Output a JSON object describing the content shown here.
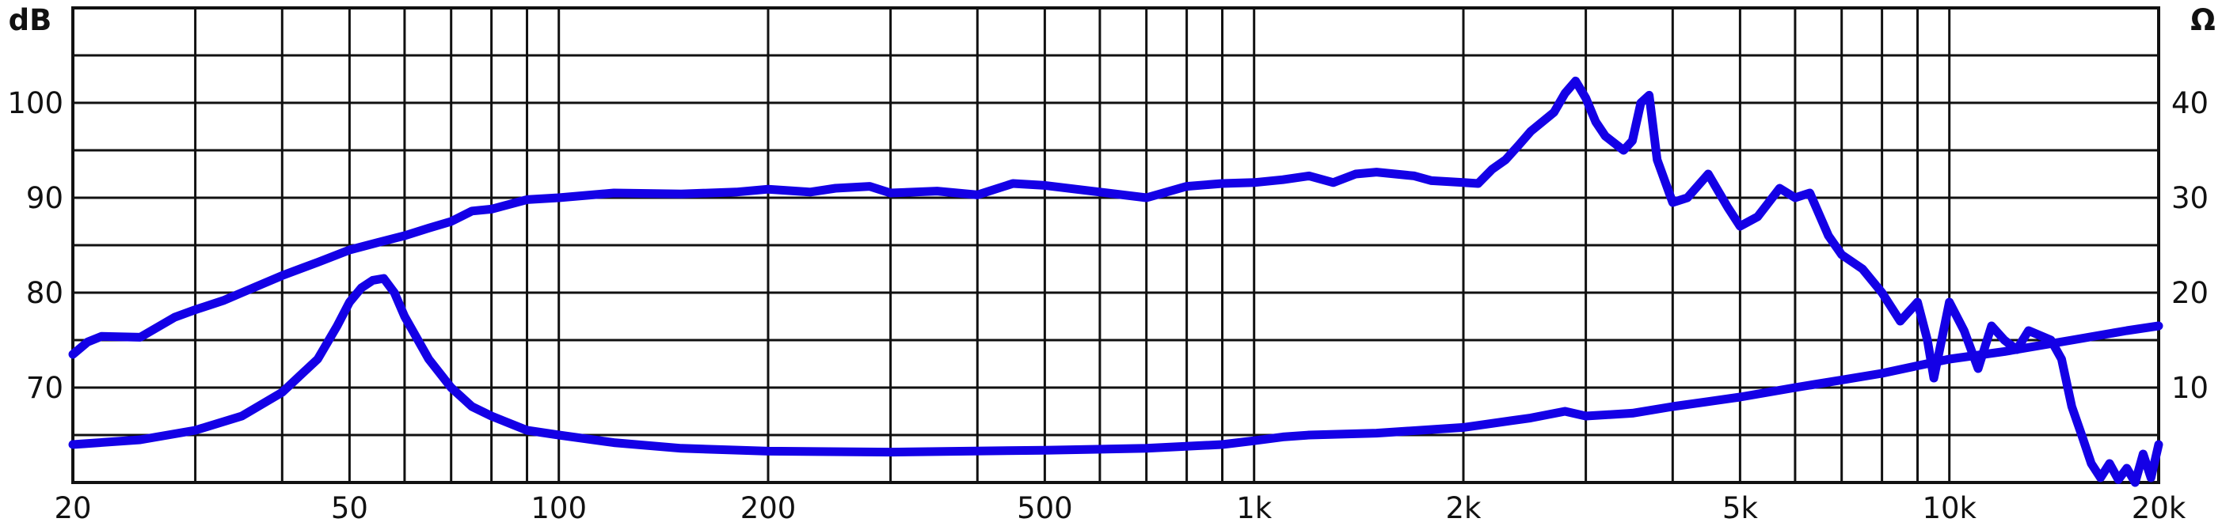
{
  "chart_data": {
    "type": "line",
    "title": "",
    "xlabel": "",
    "x_scale": "log",
    "xlim": [
      20,
      20000
    ],
    "x_major_ticks": [
      20,
      50,
      100,
      200,
      500,
      1000,
      2000,
      5000,
      10000,
      20000
    ],
    "x_tick_labels": [
      "20",
      "50",
      "100",
      "200",
      "500",
      "1k",
      "2k",
      "5k",
      "10k",
      "20k"
    ],
    "x_minor_gridlines": [
      30,
      40,
      60,
      70,
      80,
      90,
      300,
      400,
      600,
      700,
      800,
      900,
      3000,
      4000,
      6000,
      7000,
      8000,
      9000
    ],
    "y_left": {
      "unit": "dB",
      "ylim": [
        60,
        110
      ],
      "tick_values": [
        70,
        80,
        90,
        100
      ],
      "tick_labels": [
        "70",
        "80",
        "90",
        "100"
      ]
    },
    "y_right": {
      "unit": "Ω",
      "ylim": [
        0,
        50
      ],
      "tick_values": [
        10,
        20,
        30,
        40
      ],
      "tick_labels": [
        "10",
        "20",
        "30",
        "40"
      ]
    },
    "gridline_step_left_db": 5,
    "grid": true,
    "line_color": "#1400e6",
    "series": [
      {
        "axis": "left",
        "x": [
          20,
          21,
          22,
          25,
          28,
          30,
          33,
          35,
          40,
          45,
          50,
          55,
          60,
          65,
          70,
          75,
          80,
          90,
          100,
          120,
          150,
          180,
          200,
          230,
          250,
          280,
          300,
          350,
          400,
          450,
          500,
          600,
          700,
          800,
          900,
          1000,
          1100,
          1200,
          1300,
          1400,
          1500,
          1700,
          1800,
          2000,
          2100,
          2200,
          2300,
          2400,
          2500,
          2700,
          2800,
          2900,
          3000,
          3100,
          3200,
          3400,
          3500,
          3600,
          3700,
          3800,
          4000,
          4200,
          4500,
          4800,
          5000,
          5300,
          5700,
          6000,
          6300,
          6700,
          7000,
          7500,
          8000,
          8500,
          9000,
          9300,
          9500,
          10000,
          10500,
          11000,
          11500,
          12000,
          12500,
          13000,
          14000,
          14500,
          15000,
          15500,
          16000,
          16500,
          17000,
          17500,
          18000,
          18500,
          19000,
          19500,
          20000
        ],
        "values": [
          73.5,
          74.8,
          75.4,
          75.3,
          77.4,
          78.2,
          79.2,
          80.0,
          81.8,
          83.2,
          84.5,
          85.3,
          86.0,
          86.8,
          87.5,
          88.6,
          88.8,
          89.8,
          90.0,
          90.5,
          90.4,
          90.6,
          90.9,
          90.6,
          91.0,
          91.2,
          90.5,
          90.7,
          90.3,
          91.5,
          91.3,
          90.6,
          90.0,
          91.2,
          91.5,
          91.6,
          91.9,
          92.3,
          91.6,
          92.5,
          92.7,
          92.3,
          91.8,
          91.6,
          91.5,
          93.0,
          94.0,
          95.5,
          97.0,
          99.0,
          101.0,
          102.3,
          100.5,
          98.0,
          96.5,
          95.0,
          96.0,
          100.0,
          100.8,
          94.0,
          89.5,
          90.0,
          92.5,
          89.0,
          87.0,
          88.0,
          91.0,
          90.0,
          90.5,
          86.0,
          84.0,
          82.5,
          80.0,
          77.0,
          79.0,
          75.0,
          71.0,
          79.0,
          76.0,
          72.0,
          76.5,
          75.0,
          74.0,
          76.0,
          75.0,
          73.0,
          68.0,
          65.0,
          62.0,
          60.5,
          62.0,
          60.3,
          61.5,
          60.0,
          63.0,
          60.5,
          64.0
        ]
      },
      {
        "axis": "right",
        "x": [
          20,
          25,
          30,
          35,
          40,
          45,
          48,
          50,
          52,
          54,
          56,
          58,
          60,
          65,
          70,
          75,
          80,
          90,
          100,
          120,
          150,
          200,
          300,
          500,
          700,
          900,
          1000,
          1100,
          1200,
          1500,
          2000,
          2500,
          2800,
          3000,
          3500,
          4000,
          5000,
          6000,
          7000,
          8000,
          9000,
          10000,
          12000,
          15000,
          18000,
          20000
        ],
        "values": [
          4.0,
          4.5,
          5.5,
          7.0,
          9.5,
          13.0,
          16.5,
          19.0,
          20.5,
          21.3,
          21.5,
          20.0,
          17.5,
          13.0,
          10.0,
          8.0,
          7.0,
          5.5,
          5.0,
          4.2,
          3.6,
          3.3,
          3.2,
          3.4,
          3.6,
          4.0,
          4.4,
          4.8,
          5.0,
          5.2,
          5.8,
          6.8,
          7.5,
          7.0,
          7.3,
          8.0,
          9.0,
          10.0,
          10.8,
          11.5,
          12.3,
          13.0,
          13.8,
          15.0,
          16.0,
          16.5
        ]
      }
    ]
  }
}
